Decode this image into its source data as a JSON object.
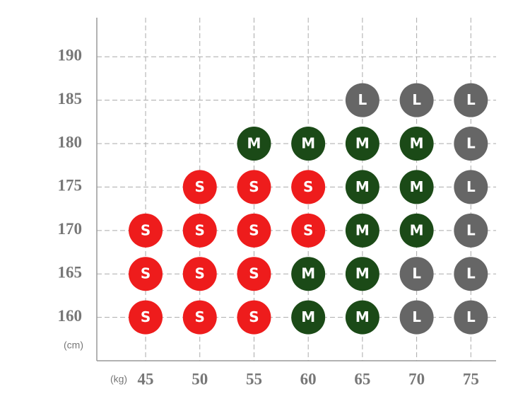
{
  "chart_data": {
    "type": "scatter",
    "x_unit": "(kg)",
    "y_unit": "(cm)",
    "xlim": [
      40.5,
      77
    ],
    "xticks": [
      45,
      50,
      55,
      60,
      65,
      70,
      75
    ],
    "ylim": [
      155,
      194.5
    ],
    "yticks": [
      160,
      165,
      170,
      175,
      180,
      185,
      190
    ],
    "grid": true,
    "series": [
      {
        "name": "S",
        "color": "#ee1c1c",
        "x": [
          50,
          55,
          60,
          45,
          50,
          55,
          60,
          45,
          50,
          55,
          45,
          50,
          55
        ],
        "values": [
          175,
          175,
          175,
          170,
          170,
          170,
          170,
          165,
          165,
          165,
          160,
          160,
          160
        ]
      },
      {
        "name": "M",
        "color": "#1b4a17",
        "x": [
          55,
          60,
          65,
          70,
          65,
          70,
          65,
          70,
          60,
          65,
          60,
          65
        ],
        "values": [
          180,
          180,
          180,
          180,
          175,
          175,
          170,
          170,
          165,
          165,
          160,
          160
        ]
      },
      {
        "name": "L",
        "color": "#666666",
        "x": [
          65,
          70,
          75,
          75,
          75,
          75,
          70,
          75,
          70,
          75
        ],
        "values": [
          185,
          185,
          185,
          180,
          175,
          170,
          165,
          165,
          160,
          160
        ]
      }
    ]
  }
}
